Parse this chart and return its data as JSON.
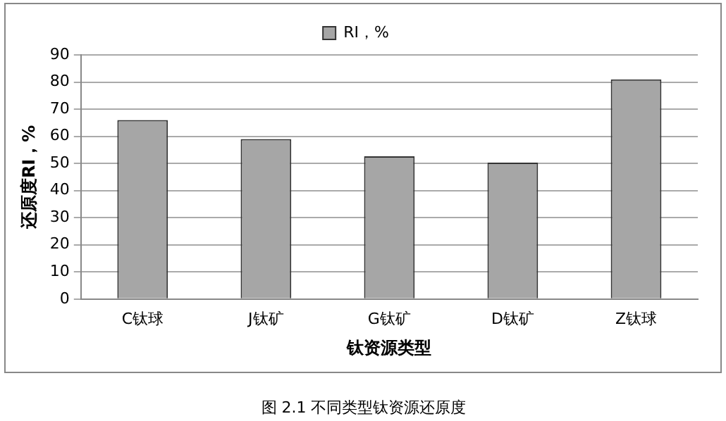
{
  "chart_data": {
    "type": "bar",
    "categories": [
      "C钛球",
      "J钛矿",
      "G钛矿",
      "D钛矿",
      "Z钛球"
    ],
    "series": [
      {
        "name": "RI，%",
        "color": "#a6a6a6",
        "values": [
          66,
          59,
          52.6,
          50.3,
          81
        ]
      }
    ],
    "xlabel": "钛资源类型",
    "ylabel": "还原度RI，%",
    "ylim": [
      0,
      90
    ],
    "yticks": [
      0,
      10,
      20,
      30,
      40,
      50,
      60,
      70,
      80,
      90
    ],
    "grid": "y",
    "legend": "top",
    "annotations": [
      "图 2.1 不同类型钛资源还原度"
    ]
  }
}
